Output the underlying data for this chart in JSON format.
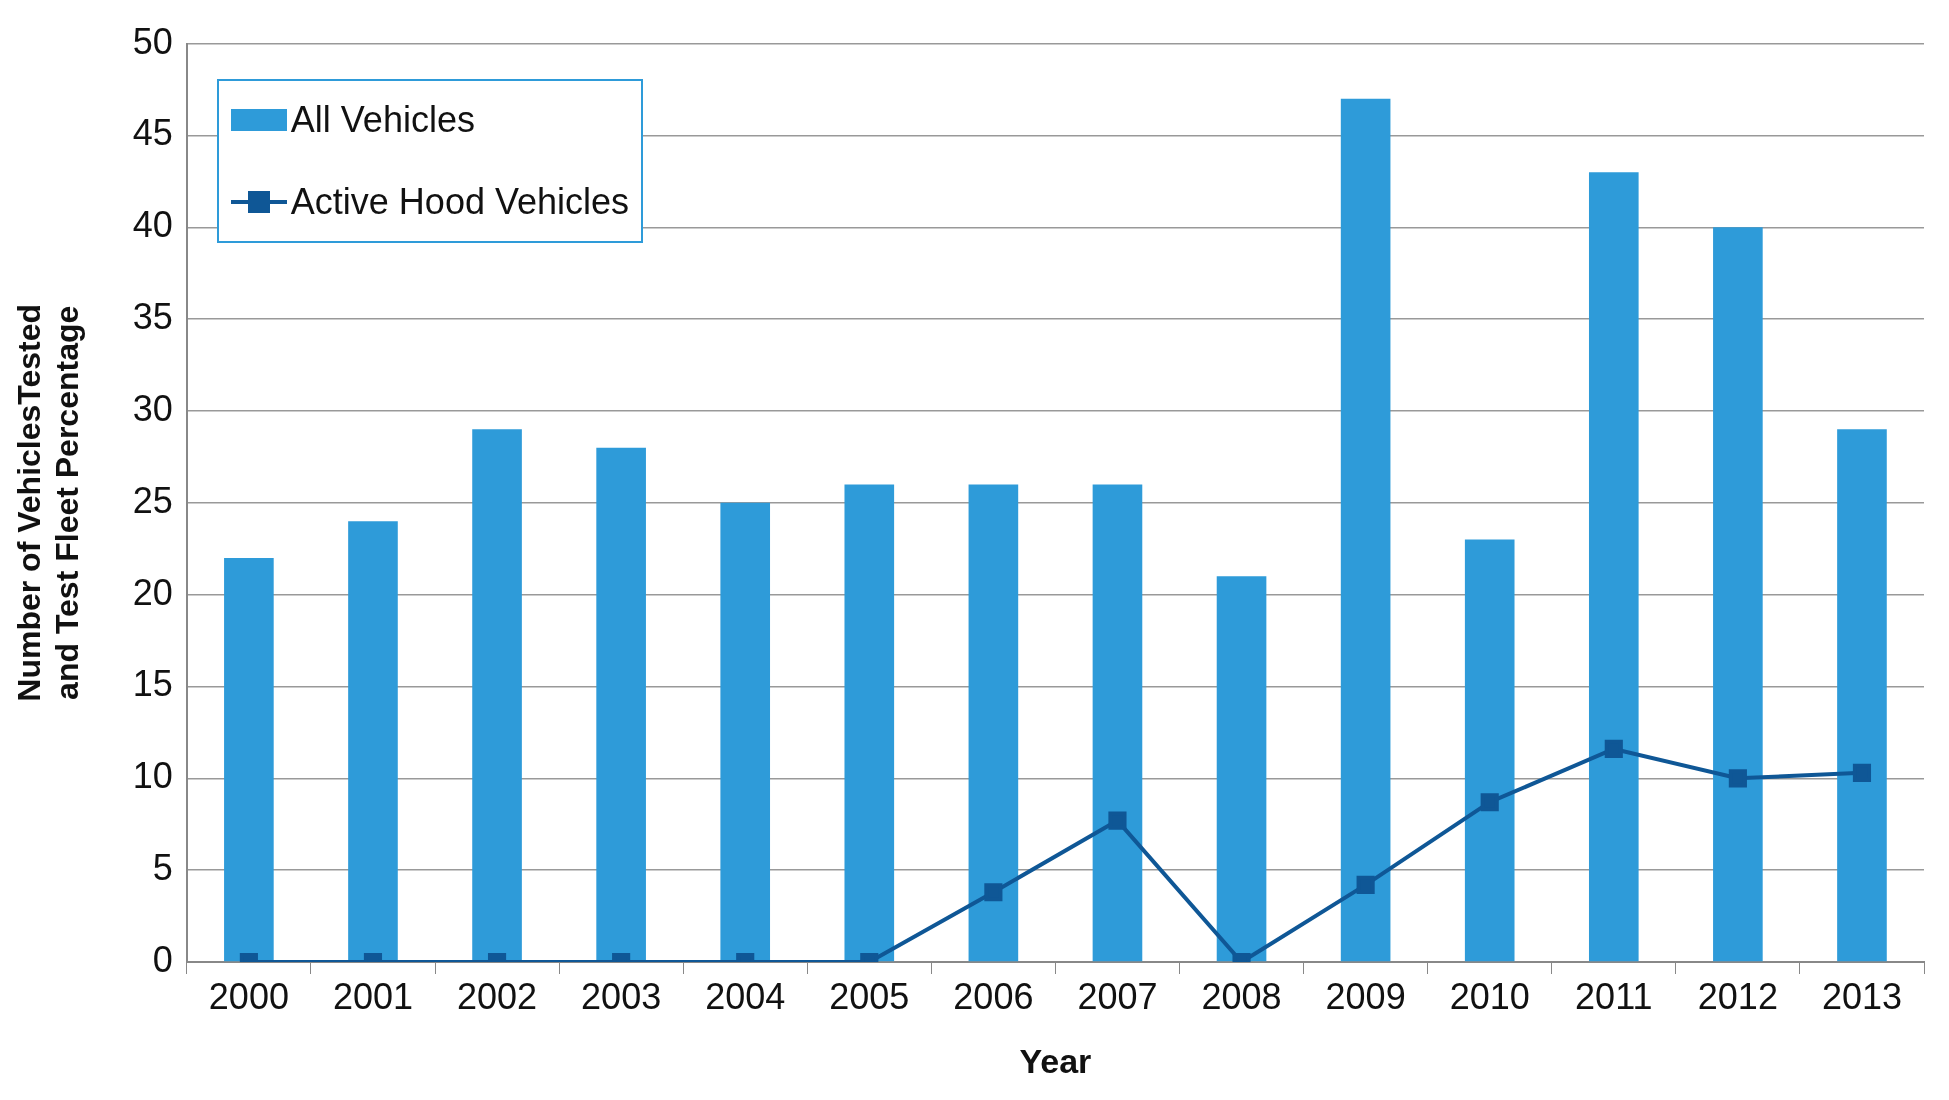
{
  "chart_data": {
    "type": "bar",
    "xlabel": "Year",
    "ylabel": "Number of VehiclesTested\nand Test Fleet Percentage",
    "categories": [
      "2000",
      "2001",
      "2002",
      "2003",
      "2004",
      "2005",
      "2006",
      "2007",
      "2008",
      "2009",
      "2010",
      "2011",
      "2012",
      "2013"
    ],
    "series": [
      {
        "name": "All Vehicles",
        "color": "#2e9bd9",
        "values": [
          22,
          24,
          29,
          28,
          25,
          26,
          26,
          26,
          21,
          47,
          23,
          43,
          40,
          29
        ]
      },
      {
        "name": "Active Hood Vehicles",
        "type": "line",
        "color": "#0f5796",
        "marker": "square",
        "values": [
          0,
          0,
          0,
          0,
          0,
          0,
          3.8,
          7.7,
          0,
          4.2,
          8.7,
          11.6,
          10,
          10.3
        ]
      }
    ],
    "ylim": [
      0,
      50
    ],
    "yticks": [
      0,
      5,
      10,
      15,
      20,
      25,
      30,
      35,
      40,
      45,
      50
    ],
    "grid": "y",
    "legend": "top left"
  }
}
